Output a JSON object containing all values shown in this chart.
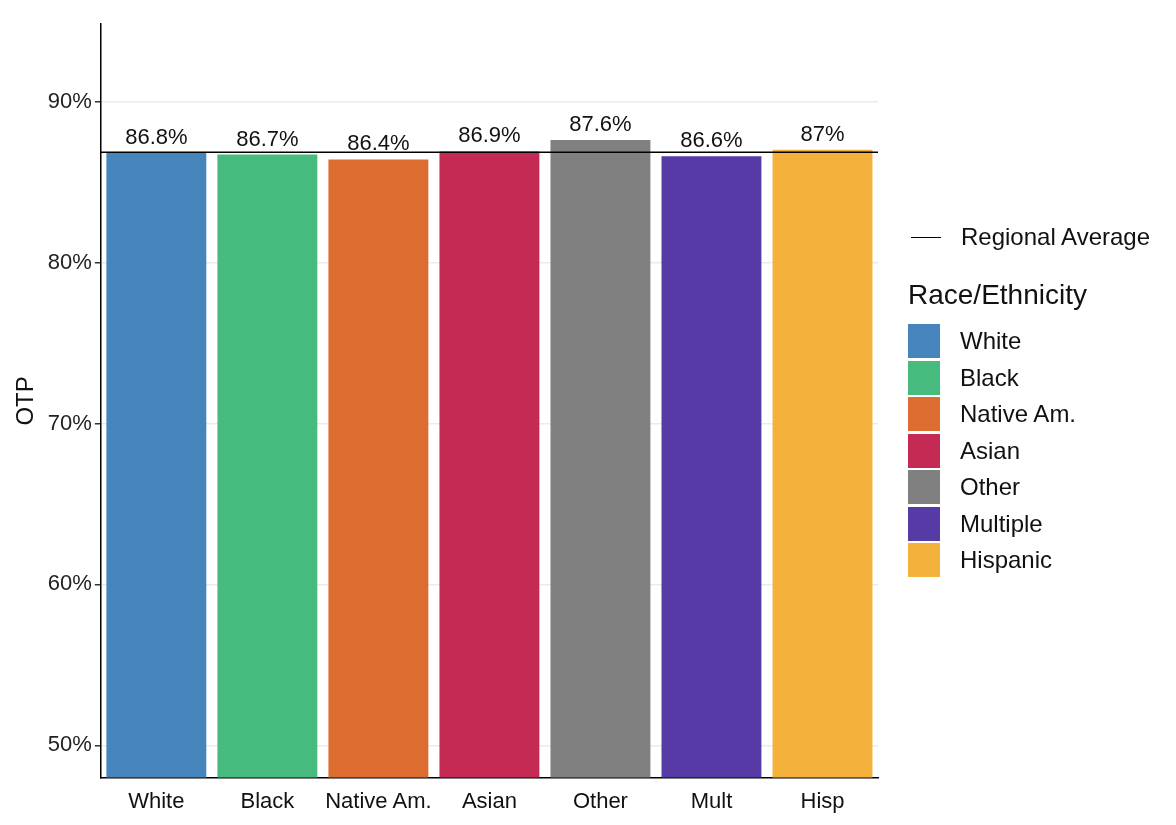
{
  "chart_data": {
    "type": "bar",
    "ylabel": "OTP",
    "legend_title": "Race/Ethnicity",
    "legend": "right",
    "grid": "y",
    "categories": [
      "White",
      "Black",
      "Native Am.",
      "Asian",
      "Other",
      "Mult",
      "Hisp"
    ],
    "series": [
      {
        "name": "White",
        "color": "#4685bb",
        "values": [
          86.8,
          null,
          null,
          null,
          null,
          null,
          null
        ],
        "value_labels": [
          "86.8%",
          null,
          null,
          null,
          null,
          null,
          null
        ]
      },
      {
        "name": "Black",
        "color": "#46bb7d",
        "values": [
          null,
          86.7,
          null,
          null,
          null,
          null,
          null
        ],
        "value_labels": [
          null,
          "86.7%",
          null,
          null,
          null,
          null,
          null
        ]
      },
      {
        "name": "Native Am.",
        "color": "#dd6c31",
        "values": [
          null,
          null,
          86.4,
          null,
          null,
          null,
          null
        ],
        "value_labels": [
          null,
          null,
          "86.4%",
          null,
          null,
          null,
          null
        ]
      },
      {
        "name": "Asian",
        "color": "#c42a54",
        "values": [
          null,
          null,
          null,
          86.9,
          null,
          null,
          null
        ],
        "value_labels": [
          null,
          null,
          null,
          "86.9%",
          null,
          null,
          null
        ]
      },
      {
        "name": "Other",
        "color": "#808080",
        "values": [
          null,
          null,
          null,
          null,
          87.6,
          null,
          null
        ],
        "value_labels": [
          null,
          null,
          null,
          null,
          "87.6%",
          null,
          null
        ]
      },
      {
        "name": "Multiple",
        "color": "#563ba6",
        "values": [
          null,
          null,
          null,
          null,
          null,
          86.6,
          null
        ],
        "value_labels": [
          null,
          null,
          null,
          null,
          null,
          "86.6%",
          null
        ]
      },
      {
        "name": "Hispanic",
        "color": "#f4b13c",
        "values": [
          null,
          null,
          null,
          null,
          null,
          null,
          87
        ],
        "value_labels": [
          null,
          null,
          null,
          null,
          null,
          null,
          "87%"
        ]
      }
    ],
    "ylim": [
      48,
      94.8
    ],
    "yticks": [
      {
        "value": 50,
        "label": "50%"
      },
      {
        "value": 60,
        "label": "60%"
      },
      {
        "value": 70,
        "label": "70%"
      },
      {
        "value": 80,
        "label": "80%"
      },
      {
        "value": 90,
        "label": "90%"
      }
    ],
    "ref_lines": [
      {
        "axis": "y",
        "value": 86.85,
        "label": "Regional Average",
        "color": "#000000"
      }
    ]
  }
}
